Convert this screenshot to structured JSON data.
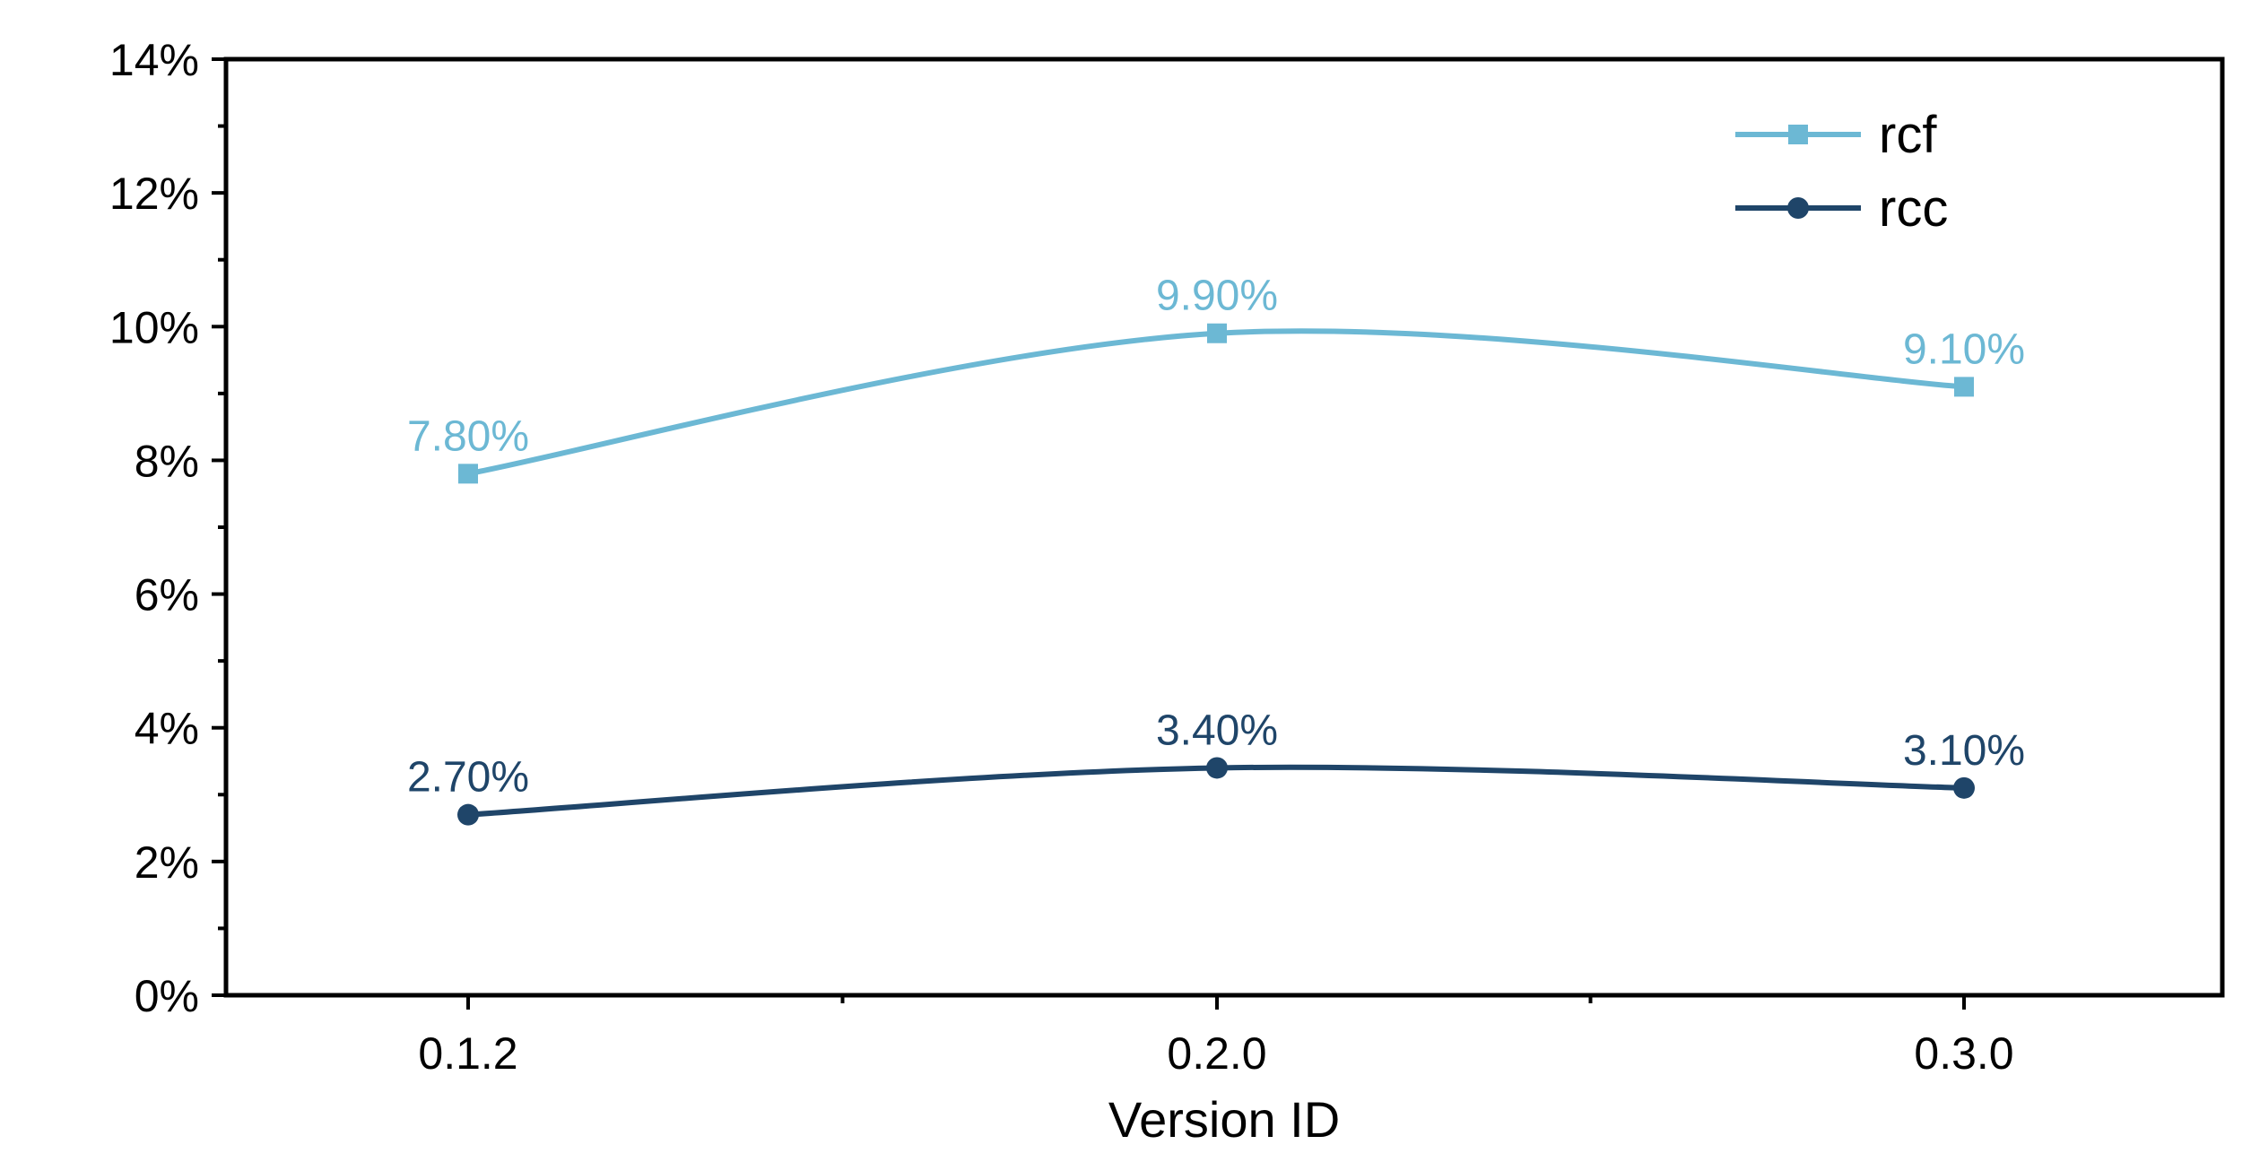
{
  "chart_data": {
    "type": "line",
    "title": "",
    "xlabel": "Version ID",
    "ylabel": "",
    "categories": [
      "0.1.2",
      "0.2.0",
      "0.3.0"
    ],
    "ylim": [
      0,
      14
    ],
    "y_ticks": [
      "0%",
      "2%",
      "4%",
      "6%",
      "8%",
      "10%",
      "12%",
      "14%"
    ],
    "y_tick_values": [
      0,
      2,
      4,
      6,
      8,
      10,
      12,
      14
    ],
    "grid": false,
    "legend_position": "top-right",
    "series": [
      {
        "name": "rcf",
        "values": [
          7.8,
          9.9,
          9.1
        ],
        "labels": [
          "7.80%",
          "9.90%",
          "9.10%"
        ],
        "color": "#6cb8d4",
        "marker": "square"
      },
      {
        "name": "rcc",
        "values": [
          2.7,
          3.4,
          3.1
        ],
        "labels": [
          "2.70%",
          "3.40%",
          "3.10%"
        ],
        "color": "#1f4569",
        "marker": "circle"
      }
    ]
  }
}
